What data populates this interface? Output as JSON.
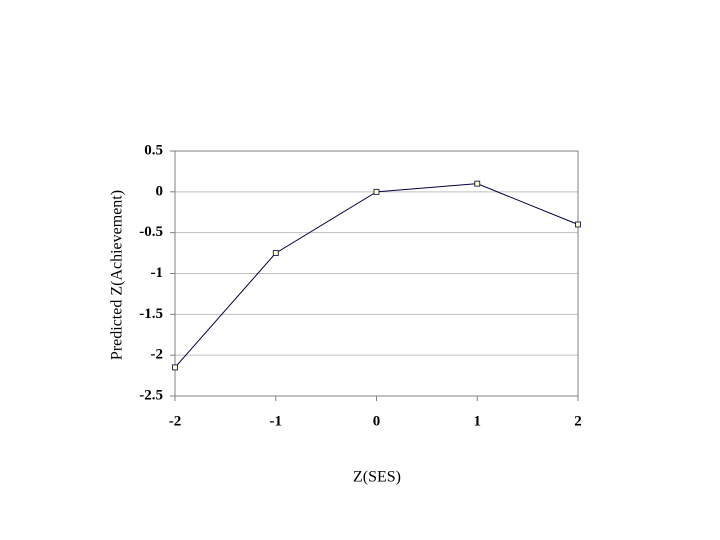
{
  "chart_data": {
    "type": "line",
    "x_label": "Z(SES)",
    "y_label": "Predicted Z(Achievement)",
    "x": [
      -2,
      -1,
      0,
      1,
      2
    ],
    "series": [
      {
        "color": "#000040",
        "values": [
          -2.15,
          -0.75,
          0,
          0.1,
          -0.4
        ]
      }
    ],
    "xlim": [
      -2,
      2
    ],
    "xticks": [
      -2,
      -1,
      0,
      1,
      2
    ],
    "ylim": [
      -2.5,
      0.5
    ],
    "yticks": [
      0.5,
      0,
      -0.5,
      -1,
      -1.5,
      -2,
      -2.5
    ],
    "grid": true
  }
}
